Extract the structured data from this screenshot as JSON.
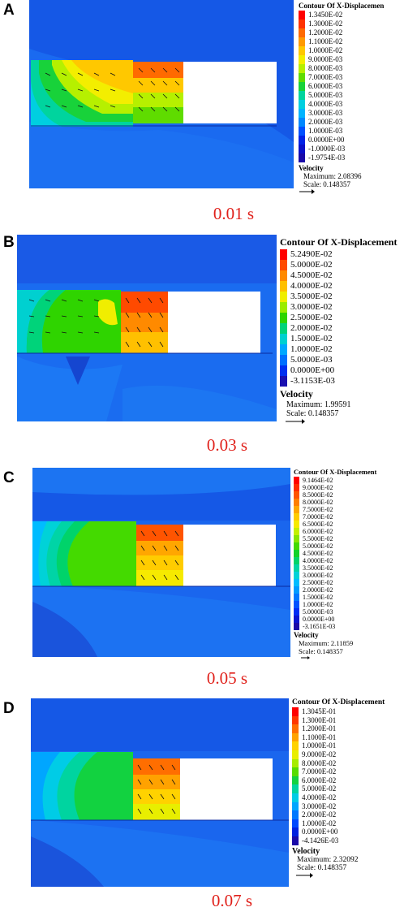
{
  "panels": [
    {
      "letter": "A",
      "time": "0.01 s",
      "legend_title": "Contour Of X-Displacemen",
      "legend_values": [
        "1.3450E-02",
        "1.3000E-02",
        "1.2000E-02",
        "1.1000E-02",
        "1.0000E-02",
        "9.0000E-03",
        "8.0000E-03",
        "7.0000E-03",
        "6.0000E-03",
        "5.0000E-03",
        "4.0000E-03",
        "3.0000E-03",
        "2.0000E-03",
        "1.0000E-03",
        "0.0000E+00",
        "-1.0000E-03",
        "-1.9754E-03"
      ],
      "legend_colors": [
        "#ff0000",
        "#ff3300",
        "#ff6a00",
        "#ff9a00",
        "#ffc800",
        "#f3ee00",
        "#b6f000",
        "#5fdc00",
        "#18d23a",
        "#00d49e",
        "#00cfe0",
        "#00b4ff",
        "#0088ff",
        "#0050ff",
        "#0022e6",
        "#0a10c8",
        "#1a0aa8"
      ],
      "velocity_title": "Velocity",
      "velocity_max": "Maximum: 2.08396",
      "velocity_scale": "Scale: 0.148357"
    },
    {
      "letter": "B",
      "time": "0.03 s",
      "legend_title": "Contour Of X-Displacement",
      "legend_values": [
        "5.2490E-02",
        "5.0000E-02",
        "4.5000E-02",
        "4.0000E-02",
        "3.5000E-02",
        "3.0000E-02",
        "2.5000E-02",
        "2.0000E-02",
        "1.5000E-02",
        "1.0000E-02",
        "5.0000E-03",
        "0.0000E+00",
        "-3.1153E-03"
      ],
      "legend_colors": [
        "#ff0000",
        "#ff4a00",
        "#ff8a00",
        "#ffc000",
        "#f0ee00",
        "#9cec00",
        "#2fd400",
        "#00d37a",
        "#00d0d0",
        "#00a8ff",
        "#0070ff",
        "#0030f0",
        "#1a10b0"
      ],
      "velocity_title": "Velocity",
      "velocity_max": "Maximum: 1.99591",
      "velocity_scale": "Scale: 0.148357"
    },
    {
      "letter": "C",
      "time": "0.05 s",
      "legend_title": "Contour Of X-Displacement",
      "legend_values": [
        "9.1464E-02",
        "9.0000E-02",
        "8.5000E-02",
        "8.0000E-02",
        "7.5000E-02",
        "7.0000E-02",
        "6.5000E-02",
        "6.0000E-02",
        "5.5000E-02",
        "5.0000E-02",
        "4.5000E-02",
        "4.0000E-02",
        "3.5000E-02",
        "3.0000E-02",
        "2.5000E-02",
        "2.0000E-02",
        "1.5000E-02",
        "1.0000E-02",
        "5.0000E-03",
        "0.0000E+00",
        "-3.1651E-03"
      ],
      "legend_colors": [
        "#ff0000",
        "#ff2a00",
        "#ff5400",
        "#ff7e00",
        "#ffa600",
        "#ffcc00",
        "#f6ea00",
        "#c4f000",
        "#88e600",
        "#44da00",
        "#10d22a",
        "#00d36a",
        "#00d4a6",
        "#00d2d8",
        "#00bcff",
        "#009cff",
        "#0078ff",
        "#0052ff",
        "#002cf4",
        "#0a14d0",
        "#1a0aa8"
      ],
      "velocity_title": "Velocity",
      "velocity_max": "Maximum: 2.11859",
      "velocity_scale": "Scale: 0.148357"
    },
    {
      "letter": "D",
      "time": "0.07 s",
      "legend_title": "Contour Of X-Displacement",
      "legend_values": [
        "1.3045E-01",
        "1.3000E-01",
        "1.2000E-01",
        "1.1000E-01",
        "1.0000E-01",
        "9.0000E-02",
        "8.0000E-02",
        "7.0000E-02",
        "6.0000E-02",
        "5.0000E-02",
        "4.0000E-02",
        "3.0000E-02",
        "2.0000E-02",
        "1.0000E-02",
        "0.0000E+00",
        "-4.1426E-03"
      ],
      "legend_colors": [
        "#ff0000",
        "#ff3600",
        "#ff6e00",
        "#ffa200",
        "#ffd200",
        "#e8ee00",
        "#a6ec00",
        "#56dc00",
        "#12d240",
        "#00d4a0",
        "#00cce6",
        "#00a6ff",
        "#0078ff",
        "#0048ff",
        "#0020e0",
        "#1a0aa8"
      ],
      "velocity_title": "Velocity",
      "velocity_max": "Maximum: 2.32092",
      "velocity_scale": "Scale: 0.148357"
    }
  ]
}
